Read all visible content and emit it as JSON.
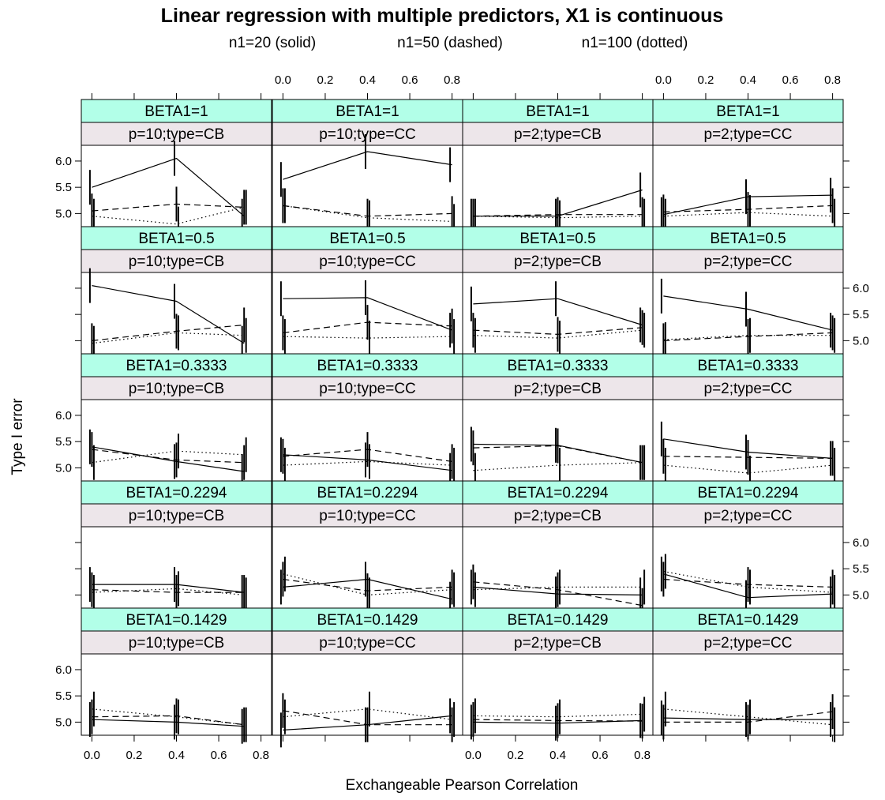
{
  "chart_data": {
    "type": "line",
    "title": "Linear regression with multiple predictors, X1 is continuous",
    "subtitle": {
      "solid": "n1=20 (solid)",
      "dashed": "n1=50 (dashed)",
      "dotted": "n1=100 (dotted)"
    },
    "xlabel": "Exchangeable Pearson Correlation",
    "ylabel": "Type I error",
    "xlim": [
      -0.05,
      0.85
    ],
    "ylim": [
      4.75,
      6.3
    ],
    "x_ticks": [
      "0.0",
      "0.2",
      "0.4",
      "0.6",
      "0.8"
    ],
    "y_ticks": [
      "5.0",
      "5.5",
      "6.0"
    ],
    "colors": {
      "strip_top": "#B2FFE8",
      "strip_bottom": "#EDE6EA",
      "line": "#000000"
    },
    "panel_columns": [
      "p=10;type=CB",
      "p=10;type=CC",
      "p=2;type=CB",
      "p=2;type=CC"
    ],
    "panel_rows": [
      "BETA1=1",
      "BETA1=0.5",
      "BETA1=0.3333",
      "BETA1=0.2294",
      "BETA1=0.1429"
    ],
    "panels": [
      {
        "beta": "BETA1=1",
        "cond": "p=10;type=CB",
        "x": [
          0,
          0.4,
          0.72
        ],
        "series": [
          {
            "name": "n1=20",
            "values": [
              5.5,
              6.05,
              4.95
            ]
          },
          {
            "name": "n1=50",
            "values": [
              5.05,
              5.18,
              5.12
            ]
          },
          {
            "name": "n1=100",
            "values": [
              4.95,
              4.8,
              5.12
            ]
          }
        ]
      },
      {
        "beta": "BETA1=1",
        "cond": "p=10;type=CC",
        "x": [
          0,
          0.4,
          0.8
        ],
        "series": [
          {
            "name": "n1=20",
            "values": [
              5.65,
              6.18,
              5.93
            ]
          },
          {
            "name": "n1=50",
            "values": [
              5.15,
              4.95,
              5.0
            ]
          },
          {
            "name": "n1=100",
            "values": [
              5.15,
              4.92,
              4.85
            ]
          }
        ]
      },
      {
        "beta": "BETA1=1",
        "cond": "p=2;type=CB",
        "x": [
          0,
          0.4,
          0.8
        ],
        "series": [
          {
            "name": "n1=20",
            "values": [
              4.95,
              4.95,
              5.45
            ]
          },
          {
            "name": "n1=50",
            "values": [
              4.95,
              4.98,
              4.98
            ]
          },
          {
            "name": "n1=100",
            "values": [
              4.95,
              4.92,
              4.95
            ]
          }
        ]
      },
      {
        "beta": "BETA1=1",
        "cond": "p=2;type=CC",
        "x": [
          0,
          0.4,
          0.8
        ],
        "series": [
          {
            "name": "n1=20",
            "values": [
              4.98,
              5.32,
              5.35
            ]
          },
          {
            "name": "n1=50",
            "values": [
              5.03,
              5.08,
              5.15
            ]
          },
          {
            "name": "n1=100",
            "values": [
              4.95,
              5.02,
              4.95
            ]
          }
        ]
      },
      {
        "beta": "BETA1=0.5",
        "cond": "p=10;type=CB",
        "x": [
          0,
          0.4,
          0.72
        ],
        "series": [
          {
            "name": "n1=20",
            "values": [
              6.05,
              5.75,
              4.95
            ]
          },
          {
            "name": "n1=50",
            "values": [
              5.0,
              5.18,
              5.3
            ]
          },
          {
            "name": "n1=100",
            "values": [
              4.95,
              5.15,
              5.1
            ]
          }
        ]
      },
      {
        "beta": "BETA1=0.5",
        "cond": "p=10;type=CC",
        "x": [
          0,
          0.4,
          0.8
        ],
        "series": [
          {
            "name": "n1=20",
            "values": [
              5.8,
              5.82,
              5.2
            ]
          },
          {
            "name": "n1=50",
            "values": [
              5.15,
              5.35,
              5.28
            ]
          },
          {
            "name": "n1=100",
            "values": [
              5.08,
              5.05,
              5.08
            ]
          }
        ]
      },
      {
        "beta": "BETA1=0.5",
        "cond": "p=2;type=CB",
        "x": [
          0,
          0.4,
          0.8
        ],
        "series": [
          {
            "name": "n1=20",
            "values": [
              5.7,
              5.8,
              5.3
            ]
          },
          {
            "name": "n1=50",
            "values": [
              5.2,
              5.12,
              5.25
            ]
          },
          {
            "name": "n1=100",
            "values": [
              5.1,
              5.05,
              5.2
            ]
          }
        ]
      },
      {
        "beta": "BETA1=0.5",
        "cond": "p=2;type=CC",
        "x": [
          0,
          0.4,
          0.8
        ],
        "series": [
          {
            "name": "n1=20",
            "values": [
              5.85,
              5.6,
              5.2
            ]
          },
          {
            "name": "n1=50",
            "values": [
              5.0,
              5.08,
              5.15
            ]
          },
          {
            "name": "n1=100",
            "values": [
              5.02,
              5.1,
              5.1
            ]
          }
        ]
      },
      {
        "beta": "BETA1=0.3333",
        "cond": "p=10;type=CB",
        "x": [
          0,
          0.4,
          0.72
        ],
        "series": [
          {
            "name": "n1=20",
            "values": [
              5.4,
              5.12,
              4.93
            ]
          },
          {
            "name": "n1=50",
            "values": [
              5.35,
              5.15,
              5.1
            ]
          },
          {
            "name": "n1=100",
            "values": [
              5.1,
              5.32,
              5.25
            ]
          }
        ]
      },
      {
        "beta": "BETA1=0.3333",
        "cond": "p=10;type=CC",
        "x": [
          0,
          0.4,
          0.8
        ],
        "series": [
          {
            "name": "n1=20",
            "values": [
              5.25,
              5.15,
              4.95
            ]
          },
          {
            "name": "n1=50",
            "values": [
              5.22,
              5.35,
              5.12
            ]
          },
          {
            "name": "n1=100",
            "values": [
              5.05,
              5.12,
              5.05
            ]
          }
        ]
      },
      {
        "beta": "BETA1=0.3333",
        "cond": "p=2;type=CB",
        "x": [
          0,
          0.4,
          0.8
        ],
        "series": [
          {
            "name": "n1=20",
            "values": [
              5.45,
              5.43,
              5.1
            ]
          },
          {
            "name": "n1=50",
            "values": [
              5.38,
              5.42,
              5.1
            ]
          },
          {
            "name": "n1=100",
            "values": [
              4.95,
              5.05,
              5.1
            ]
          }
        ]
      },
      {
        "beta": "BETA1=0.3333",
        "cond": "p=2;type=CC",
        "x": [
          0,
          0.4,
          0.8
        ],
        "series": [
          {
            "name": "n1=20",
            "values": [
              5.55,
              5.3,
              5.18
            ]
          },
          {
            "name": "n1=50",
            "values": [
              5.22,
              5.2,
              5.18
            ]
          },
          {
            "name": "n1=100",
            "values": [
              5.05,
              4.9,
              5.05
            ]
          }
        ]
      },
      {
        "beta": "BETA1=0.2294",
        "cond": "p=10;type=CB",
        "x": [
          0,
          0.4,
          0.72
        ],
        "series": [
          {
            "name": "n1=20",
            "values": [
              5.2,
              5.2,
              5.05
            ]
          },
          {
            "name": "n1=50",
            "values": [
              5.1,
              5.05,
              5.05
            ]
          },
          {
            "name": "n1=100",
            "values": [
              5.05,
              5.12,
              5.0
            ]
          }
        ]
      },
      {
        "beta": "BETA1=0.2294",
        "cond": "p=10;type=CC",
        "x": [
          0,
          0.4,
          0.8
        ],
        "series": [
          {
            "name": "n1=20",
            "values": [
              5.15,
              5.3,
              4.92
            ]
          },
          {
            "name": "n1=50",
            "values": [
              5.3,
              5.08,
              5.15
            ]
          },
          {
            "name": "n1=100",
            "values": [
              5.4,
              5.0,
              5.1
            ]
          }
        ]
      },
      {
        "beta": "BETA1=0.2294",
        "cond": "p=2;type=CB",
        "x": [
          0,
          0.4,
          0.8
        ],
        "series": [
          {
            "name": "n1=20",
            "values": [
              5.15,
              5.02,
              5.0
            ]
          },
          {
            "name": "n1=50",
            "values": [
              5.25,
              5.1,
              4.8
            ]
          },
          {
            "name": "n1=100",
            "values": [
              5.1,
              5.15,
              5.15
            ]
          }
        ]
      },
      {
        "beta": "BETA1=0.2294",
        "cond": "p=2;type=CC",
        "x": [
          0,
          0.4,
          0.8
        ],
        "series": [
          {
            "name": "n1=20",
            "values": [
              5.4,
              4.95,
              5.02
            ]
          },
          {
            "name": "n1=50",
            "values": [
              5.3,
              5.2,
              5.15
            ]
          },
          {
            "name": "n1=100",
            "values": [
              5.45,
              5.15,
              5.05
            ]
          }
        ]
      },
      {
        "beta": "BETA1=0.1429",
        "cond": "p=10;type=CB",
        "x": [
          0,
          0.4,
          0.72
        ],
        "series": [
          {
            "name": "n1=20",
            "values": [
              5.05,
              5.0,
              4.92
            ]
          },
          {
            "name": "n1=50",
            "values": [
              5.1,
              5.12,
              4.95
            ]
          },
          {
            "name": "n1=100",
            "values": [
              5.25,
              5.1,
              4.95
            ]
          }
        ]
      },
      {
        "beta": "BETA1=0.1429",
        "cond": "p=10;type=CC",
        "x": [
          0,
          0.4,
          0.8
        ],
        "series": [
          {
            "name": "n1=20",
            "values": [
              4.85,
              4.95,
              5.12
            ]
          },
          {
            "name": "n1=50",
            "values": [
              5.22,
              4.95,
              4.95
            ]
          },
          {
            "name": "n1=100",
            "values": [
              5.1,
              5.25,
              5.05
            ]
          }
        ]
      },
      {
        "beta": "BETA1=0.1429",
        "cond": "p=2;type=CB",
        "x": [
          0,
          0.4,
          0.8
        ],
        "series": [
          {
            "name": "n1=20",
            "values": [
              5.0,
              4.98,
              5.03
            ]
          },
          {
            "name": "n1=50",
            "values": [
              5.05,
              5.03,
              5.02
            ]
          },
          {
            "name": "n1=100",
            "values": [
              5.12,
              5.1,
              5.15
            ]
          }
        ]
      },
      {
        "beta": "BETA1=0.1429",
        "cond": "p=2;type=CC",
        "x": [
          0,
          0.4,
          0.8
        ],
        "series": [
          {
            "name": "n1=20",
            "values": [
              5.08,
              5.05,
              5.05
            ]
          },
          {
            "name": "n1=50",
            "values": [
              5.0,
              5.0,
              5.2
            ]
          },
          {
            "name": "n1=100",
            "values": [
              5.25,
              5.1,
              4.95
            ]
          }
        ]
      }
    ]
  }
}
